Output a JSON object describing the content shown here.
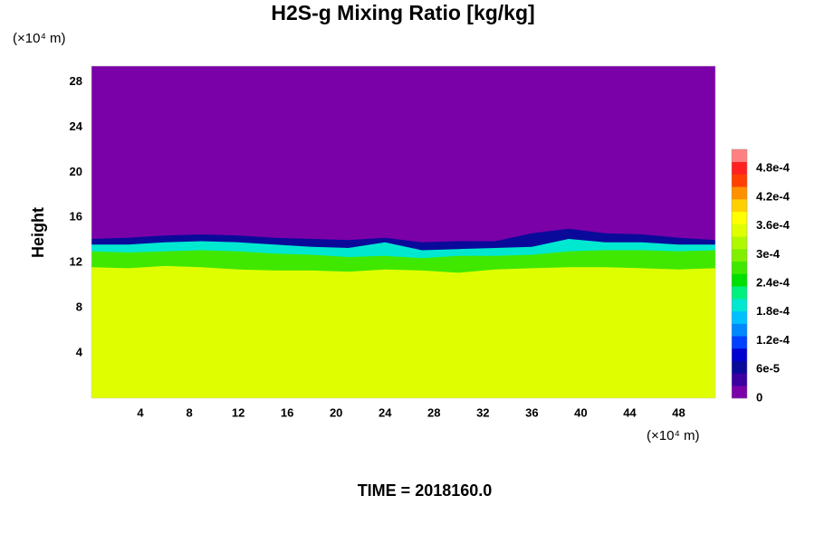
{
  "chart_data": {
    "type": "contour",
    "title": "H2S-g Mixing Ratio [kg/kg]",
    "ylabel": "Height",
    "x_unit": "(×10⁴ m)",
    "y_unit": "(×10⁴ m)",
    "footer": "TIME = 2018160.0",
    "xlim": [
      0,
      51
    ],
    "ylim": [
      0,
      29.4
    ],
    "xticks": [
      4,
      8,
      12,
      16,
      20,
      24,
      28,
      32,
      36,
      40,
      44,
      48
    ],
    "yticks": [
      4,
      8,
      12,
      16,
      20,
      24,
      28
    ],
    "clim": [
      0,
      0.00052
    ],
    "cticks": [
      0,
      {
        "value": 6e-05,
        "label": "6e-5"
      },
      {
        "value": 0.00012,
        "label": "1.2e-4"
      },
      {
        "value": 0.00018,
        "label": "1.8e-4"
      },
      {
        "value": 0.00024,
        "label": "2.4e-4"
      },
      {
        "value": 0.0003,
        "label": "3e-4"
      },
      {
        "value": 0.00036,
        "label": "3.6e-4"
      },
      {
        "value": 0.00042,
        "label": "4.2e-4"
      },
      {
        "value": 0.00048,
        "label": "4.8e-4"
      }
    ],
    "colors": [
      "#7a00a8",
      "#3a00a0",
      "#0a0a9a",
      "#0000d0",
      "#0040ff",
      "#0088ff",
      "#00c0ff",
      "#00e8d0",
      "#00f080",
      "#00e000",
      "#40e800",
      "#80f000",
      "#b0f800",
      "#dfff00",
      "#ffff00",
      "#ffd000",
      "#ff9000",
      "#ff4000",
      "#ff2020",
      "#ff8080"
    ],
    "background_value": 0,
    "x": [
      0,
      3,
      6,
      9,
      12,
      15,
      18,
      21,
      24,
      27,
      30,
      33,
      36,
      39,
      42,
      45,
      48,
      51
    ],
    "layers": [
      {
        "value": 6e-05,
        "top": [
          14.1,
          14.2,
          14.4,
          14.5,
          14.4,
          14.2,
          14.1,
          14.0,
          14.2,
          13.8,
          13.9,
          13.9,
          14.6,
          15.0,
          14.6,
          14.5,
          14.2,
          14.0
        ]
      },
      {
        "value": 0.00019,
        "top": [
          13.6,
          13.6,
          13.8,
          13.9,
          13.8,
          13.6,
          13.4,
          13.3,
          13.8,
          13.1,
          13.2,
          13.3,
          13.4,
          14.1,
          13.8,
          13.8,
          13.6,
          13.6
        ]
      },
      {
        "value": 0.00027,
        "top": [
          13.0,
          12.9,
          13.0,
          13.1,
          13.0,
          12.8,
          12.7,
          12.5,
          12.6,
          12.4,
          12.6,
          12.6,
          12.7,
          13.0,
          13.1,
          13.1,
          13.0,
          13.1
        ]
      },
      {
        "value": 0.00035,
        "top": [
          11.6,
          11.5,
          11.7,
          11.6,
          11.4,
          11.3,
          11.3,
          11.2,
          11.4,
          11.3,
          11.1,
          11.4,
          11.5,
          11.6,
          11.6,
          11.5,
          11.4,
          11.5
        ]
      }
    ]
  }
}
